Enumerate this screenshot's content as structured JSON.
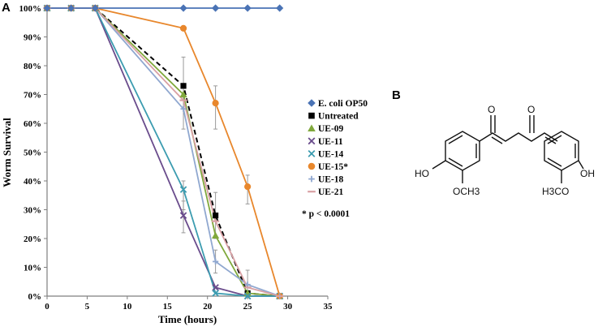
{
  "panel_a": "A",
  "panel_b": "B",
  "chart_data": {
    "type": "line",
    "title": "",
    "xlabel": "Time (hours)",
    "ylabel": "Worm Survival",
    "xlim": [
      0,
      35
    ],
    "ylim": [
      0,
      100
    ],
    "x_ticks": [
      "0",
      "5",
      "10",
      "15",
      "20",
      "25",
      "30",
      "35"
    ],
    "y_ticks": [
      "0%",
      "10%",
      "20%",
      "30%",
      "40%",
      "50%",
      "60%",
      "70%",
      "80%",
      "90%",
      "100%"
    ],
    "grid": false,
    "legend_position": "right",
    "annotation": "* p < 0.0001",
    "series": [
      {
        "name": "E. coli OP50",
        "color": "#4a73b5",
        "marker": "diamond",
        "dash": false,
        "points": [
          [
            0,
            100
          ],
          [
            3,
            100
          ],
          [
            6,
            100
          ],
          [
            17,
            100
          ],
          [
            21,
            100
          ],
          [
            25,
            100
          ],
          [
            29,
            100
          ]
        ]
      },
      {
        "name": "Untreated",
        "color": "#000000",
        "marker": "square",
        "dash": true,
        "points": [
          [
            0,
            100
          ],
          [
            3,
            100
          ],
          [
            6,
            100
          ],
          [
            17,
            73
          ],
          [
            21,
            28
          ],
          [
            25,
            1
          ],
          [
            29,
            0
          ]
        ]
      },
      {
        "name": "UE-09",
        "color": "#80a83c",
        "marker": "triangle",
        "dash": false,
        "points": [
          [
            0,
            100
          ],
          [
            3,
            100
          ],
          [
            6,
            100
          ],
          [
            17,
            70
          ],
          [
            21,
            21
          ],
          [
            25,
            1
          ],
          [
            29,
            0
          ]
        ]
      },
      {
        "name": "UE-11",
        "color": "#6a4c8c",
        "marker": "x",
        "dash": false,
        "points": [
          [
            0,
            100
          ],
          [
            3,
            100
          ],
          [
            6,
            100
          ],
          [
            17,
            28
          ],
          [
            21,
            3
          ],
          [
            25,
            0
          ],
          [
            29,
            0
          ]
        ]
      },
      {
        "name": "UE-14",
        "color": "#3c9cb0",
        "marker": "x",
        "dash": false,
        "points": [
          [
            0,
            100
          ],
          [
            3,
            100
          ],
          [
            6,
            100
          ],
          [
            17,
            37
          ],
          [
            21,
            1
          ],
          [
            25,
            0
          ],
          [
            29,
            0
          ]
        ]
      },
      {
        "name": "UE-15*",
        "color": "#e8872c",
        "marker": "circle",
        "dash": false,
        "points": [
          [
            0,
            100
          ],
          [
            3,
            100
          ],
          [
            6,
            100
          ],
          [
            17,
            93
          ],
          [
            21,
            67
          ],
          [
            25,
            38
          ],
          [
            29,
            0
          ]
        ]
      },
      {
        "name": "UE-18",
        "color": "#90a8d0",
        "marker": "plus",
        "dash": false,
        "points": [
          [
            0,
            100
          ],
          [
            3,
            100
          ],
          [
            6,
            100
          ],
          [
            17,
            65
          ],
          [
            21,
            12
          ],
          [
            25,
            4
          ],
          [
            29,
            0
          ]
        ]
      },
      {
        "name": "UE-21",
        "color": "#d8a0a4",
        "marker": "dash",
        "dash": false,
        "points": [
          [
            0,
            100
          ],
          [
            3,
            100
          ],
          [
            6,
            100
          ],
          [
            17,
            68
          ],
          [
            21,
            26
          ],
          [
            25,
            3
          ],
          [
            29,
            0
          ]
        ]
      }
    ],
    "error_bars": [
      {
        "x": 17,
        "low": 58,
        "high": 83
      },
      {
        "x": 17,
        "low": 30,
        "high": 40
      },
      {
        "x": 17,
        "low": 22,
        "high": 33
      },
      {
        "x": 21,
        "low": 58,
        "high": 73
      },
      {
        "x": 21,
        "low": 20,
        "high": 36
      },
      {
        "x": 21,
        "low": 8,
        "high": 16
      },
      {
        "x": 25,
        "low": 32,
        "high": 42
      },
      {
        "x": 25,
        "low": 0,
        "high": 9
      }
    ]
  },
  "structure": {
    "labels": {
      "o1": "O",
      "o2": "O",
      "ho": "HO",
      "och3": "OCH3",
      "h3co": "H3CO",
      "oh": "OH"
    }
  }
}
